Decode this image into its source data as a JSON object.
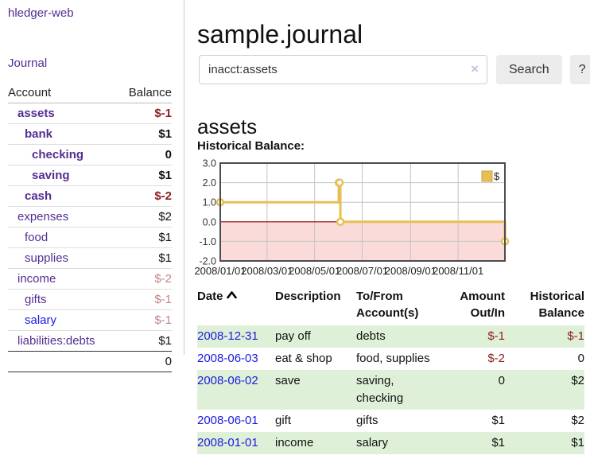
{
  "colors": {
    "brand_purple": "#542d92",
    "link_blue": "#1b1be0",
    "negative_strong": "#8e1d1d",
    "negative_soft": "#c4848a",
    "row_stripe_green": "#dff0d8",
    "chart_line_gold": "#e7bf55",
    "chart_negative_fill": "#fbdada",
    "chart_zero_line": "#8b0000",
    "chart_border": "#4d4d4d",
    "chart_grid": "#c4c4c4"
  },
  "sidebar": {
    "brand": "hledger-web",
    "nav_journal": "Journal",
    "accounts": {
      "header_account": "Account",
      "header_balance": "Balance",
      "rows": [
        {
          "label": "assets",
          "balance": "$-1",
          "depth": 1,
          "bold": true,
          "tone": "neg-strong",
          "link": "purple"
        },
        {
          "label": "bank",
          "balance": "$1",
          "depth": 2,
          "bold": true,
          "tone": "normal",
          "link": "purple"
        },
        {
          "label": "checking",
          "balance": "0",
          "depth": 3,
          "bold": true,
          "tone": "normal",
          "link": "purple"
        },
        {
          "label": "saving",
          "balance": "$1",
          "depth": 3,
          "bold": true,
          "tone": "normal",
          "link": "purple"
        },
        {
          "label": "cash",
          "balance": "$-2",
          "depth": 2,
          "bold": true,
          "tone": "neg-strong",
          "link": "purple"
        },
        {
          "label": "expenses",
          "balance": "$2",
          "depth": 1,
          "bold": false,
          "tone": "normal",
          "link": "purple"
        },
        {
          "label": "food",
          "balance": "$1",
          "depth": 2,
          "bold": false,
          "tone": "normal",
          "link": "purple"
        },
        {
          "label": "supplies",
          "balance": "$1",
          "depth": 2,
          "bold": false,
          "tone": "normal",
          "link": "purple"
        },
        {
          "label": "income",
          "balance": "$-2",
          "depth": 1,
          "bold": false,
          "tone": "neg-soft",
          "link": "purple"
        },
        {
          "label": "gifts",
          "balance": "$-1",
          "depth": 2,
          "bold": false,
          "tone": "neg-soft",
          "link": "purple"
        },
        {
          "label": "salary",
          "balance": "$-1",
          "depth": 2,
          "bold": false,
          "tone": "neg-soft",
          "link": "blue"
        },
        {
          "label": "liabilities:debts",
          "balance": "$1",
          "depth": 1,
          "bold": false,
          "tone": "normal",
          "link": "purple"
        }
      ],
      "total": "0"
    }
  },
  "main": {
    "title": "sample.journal",
    "search": {
      "value": "inacct:assets",
      "clear_label": "×",
      "search_button": "Search",
      "help_button": "?"
    },
    "account_heading": "assets",
    "chart_title": "Historical Balance:"
  },
  "chart_data": {
    "type": "line",
    "subtype": "step-after",
    "title": "Historical Balance",
    "legend": [
      {
        "name": "$",
        "position": "top-right"
      }
    ],
    "x_domain": [
      "2008/01/01",
      "2008/12/31"
    ],
    "ylim": [
      -2.0,
      3.0
    ],
    "yticks": [
      3.0,
      2.0,
      1.0,
      0.0,
      -1.0,
      -2.0
    ],
    "xticks": [
      "2008/01/01",
      "2008/03/01",
      "2008/05/01",
      "2008/07/01",
      "2008/09/01",
      "2008/11/01"
    ],
    "grid": true,
    "negative_region_shaded": true,
    "series": [
      {
        "name": "$",
        "points": [
          [
            "2008/01/01",
            1
          ],
          [
            "2008/06/01",
            2
          ],
          [
            "2008/06/02",
            2
          ],
          [
            "2008/06/03",
            0
          ],
          [
            "2008/12/31",
            -1
          ]
        ]
      }
    ]
  },
  "register": {
    "headers": [
      "Date",
      "Description",
      "To/From Account(s)",
      "Amount Out/In",
      "Historical Balance"
    ],
    "sort": {
      "column": "Date",
      "direction": "ascending"
    },
    "rows": [
      {
        "date": "2008-12-31",
        "description": "pay off",
        "accounts": "debts",
        "amount": "$-1",
        "amount_negative": true,
        "balance": "$-1",
        "balance_negative": true
      },
      {
        "date": "2008-06-03",
        "description": "eat & shop",
        "accounts": "food, supplies",
        "amount": "$-2",
        "amount_negative": true,
        "balance": "0",
        "balance_negative": false
      },
      {
        "date": "2008-06-02",
        "description": "save",
        "accounts": "saving, checking",
        "amount": "0",
        "amount_negative": false,
        "balance": "$2",
        "balance_negative": false
      },
      {
        "date": "2008-06-01",
        "description": "gift",
        "accounts": "gifts",
        "amount": "$1",
        "amount_negative": false,
        "balance": "$2",
        "balance_negative": false
      },
      {
        "date": "2008-01-01",
        "description": "income",
        "accounts": "salary",
        "amount": "$1",
        "amount_negative": false,
        "balance": "$1",
        "balance_negative": false
      }
    ]
  }
}
